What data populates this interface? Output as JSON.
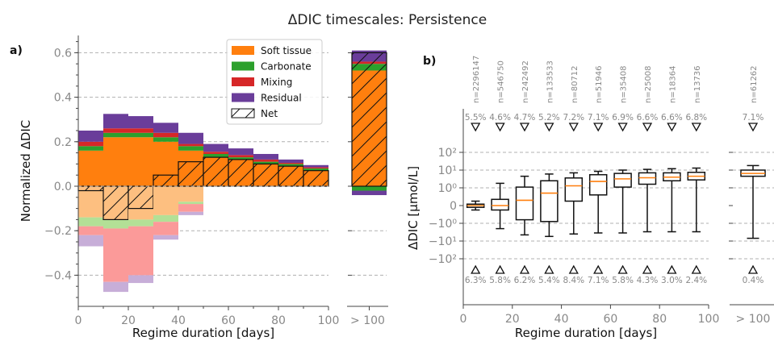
{
  "figure": {
    "title": "ΔDIC timescales: Persistence"
  },
  "colors": {
    "soft_tissue": "#ff7f0e",
    "carbonate": "#2ca02c",
    "mixing": "#d62728",
    "residual": "#6a3d9a",
    "soft_tissue_light": "#fdbf80",
    "carbonate_light": "#b3e096",
    "mixing_light": "#fb9a99",
    "residual_light": "#c7aed8",
    "grid": "#b0b0b0",
    "axis": "#444444",
    "tick_label": "#888888",
    "median": "#ff7f0e"
  },
  "chart_data": [
    {
      "id": "a",
      "panel_label": "a)",
      "type": "bar",
      "stacked": true,
      "ylabel": "Normalized ΔDIC",
      "xlabel": "Regime duration [days]",
      "xlim": [
        0,
        100
      ],
      "ylim": [
        -0.52,
        0.68
      ],
      "yticks": [
        -0.4,
        -0.2,
        0.0,
        0.2,
        0.4,
        0.6
      ],
      "ytick_labels": [
        "−0.4",
        "−0.2",
        "0.0",
        "0.2",
        "0.4",
        "0.6"
      ],
      "xticks": [
        0,
        20,
        40,
        60,
        80,
        100
      ],
      "xtick_labels": [
        "0",
        "20",
        "40",
        "60",
        "80",
        "100"
      ],
      "extra_category_label": "> 100",
      "legend_position": "top-right",
      "legend": [
        "Soft tissue",
        "Carbonate",
        "Mixing",
        "Residual",
        "Net"
      ],
      "bins": [
        [
          0,
          10
        ],
        [
          10,
          20
        ],
        [
          20,
          30
        ],
        [
          30,
          40
        ],
        [
          40,
          50
        ],
        [
          50,
          60
        ],
        [
          60,
          70
        ],
        [
          70,
          80
        ],
        [
          80,
          90
        ],
        [
          90,
          100
        ]
      ],
      "positive": {
        "soft_tissue": [
          0.16,
          0.22,
          0.22,
          0.2,
          0.16,
          0.13,
          0.12,
          0.1,
          0.09,
          0.07
        ],
        "carbonate": [
          0.02,
          0.02,
          0.02,
          0.02,
          0.02,
          0.015,
          0.01,
          0.01,
          0.01,
          0.01
        ],
        "mixing": [
          0.02,
          0.02,
          0.02,
          0.02,
          0.01,
          0.01,
          0.01,
          0.01,
          0.005,
          0.005
        ],
        "residual": [
          0.05,
          0.065,
          0.055,
          0.045,
          0.05,
          0.035,
          0.03,
          0.025,
          0.015,
          0.01
        ]
      },
      "negative": {
        "soft_tissue": [
          -0.14,
          -0.15,
          -0.15,
          -0.13,
          -0.07,
          0,
          0,
          0,
          0,
          0
        ],
        "carbonate": [
          -0.04,
          -0.04,
          -0.03,
          -0.03,
          -0.01,
          0,
          0,
          0,
          0,
          0
        ],
        "mixing": [
          -0.04,
          -0.24,
          -0.22,
          -0.06,
          -0.035,
          0,
          0,
          0,
          0,
          0
        ],
        "residual": [
          -0.05,
          -0.045,
          -0.035,
          -0.02,
          -0.015,
          0,
          0,
          0,
          0,
          0
        ]
      },
      "net": [
        -0.02,
        -0.15,
        -0.1,
        0.05,
        0.11,
        0.13,
        0.12,
        0.1,
        0.09,
        0.07
      ],
      "over_100": {
        "soft_tissue": 0.52,
        "carbonate": 0.03,
        "mixing": 0.01,
        "residual": 0.05,
        "negative_carbonate": -0.02,
        "negative_residual": -0.02,
        "net": 0.6
      }
    },
    {
      "id": "b",
      "panel_label": "b)",
      "type": "box",
      "ylabel": "ΔDIC [µmol/L]",
      "xlabel": "Regime duration [days]",
      "yscale": "symlog",
      "xlim": [
        0,
        100
      ],
      "ytick_labels": [
        "−10²",
        "−10¹",
        "−10⁰",
        "0",
        "10⁰",
        "10¹",
        "10²"
      ],
      "ytick_values": [
        -100,
        -10,
        -1,
        0,
        1,
        10,
        100
      ],
      "xticks": [
        0,
        20,
        40,
        60,
        80,
        100
      ],
      "xtick_labels": [
        "0",
        "20",
        "40",
        "60",
        "80",
        "100"
      ],
      "extra_category_label": "> 100",
      "positions": [
        5,
        15,
        25,
        35,
        45,
        55,
        65,
        75,
        85,
        95
      ],
      "counts": [
        "n=2296147",
        "n=546750",
        "n=242492",
        "n=133533",
        "n=80712",
        "n=51946",
        "n=35408",
        "n=25008",
        "n=18364",
        "n=13736"
      ],
      "boxes": [
        {
          "wlo": -0.25,
          "q1": -0.1,
          "med": 0.0,
          "q3": 0.08,
          "whi": 0.25
        },
        {
          "wlo": -2.0,
          "q1": -0.25,
          "med": 0.0,
          "q3": 0.35,
          "whi": 1.8
        },
        {
          "wlo": -4.5,
          "q1": -0.8,
          "med": 0.3,
          "q3": 1.1,
          "whi": 4.5
        },
        {
          "wlo": -5.5,
          "q1": -0.9,
          "med": 0.7,
          "q3": 2.5,
          "whi": 6.0
        },
        {
          "wlo": -4.0,
          "q1": 0.25,
          "med": 1.3,
          "q3": 3.6,
          "whi": 7.0
        },
        {
          "wlo": -3.5,
          "q1": 0.6,
          "med": 2.3,
          "q3": 5.5,
          "whi": 8.5
        },
        {
          "wlo": -3.5,
          "q1": 1.1,
          "med": 3.2,
          "q3": 6.5,
          "whi": 10.0
        },
        {
          "wlo": -3.0,
          "q1": 1.6,
          "med": 3.7,
          "q3": 7.0,
          "whi": 11.0
        },
        {
          "wlo": -3.0,
          "q1": 2.5,
          "med": 4.0,
          "q3": 7.0,
          "whi": 12.0
        },
        {
          "wlo": -3.0,
          "q1": 2.8,
          "med": 4.5,
          "q3": 7.5,
          "whi": 13.0
        }
      ],
      "upper_outlier_pct": [
        "5.5%",
        "4.6%",
        "4.7%",
        "5.2%",
        "7.2%",
        "7.1%",
        "6.9%",
        "6.6%",
        "6.6%",
        "6.8%"
      ],
      "lower_outlier_pct": [
        "6.3%",
        "5.8%",
        "6.2%",
        "5.4%",
        "8.4%",
        "7.1%",
        "5.8%",
        "4.3%",
        "3.0%",
        "2.4%"
      ],
      "over_100": {
        "count": "n=61262",
        "box": {
          "wlo": -7.0,
          "q1": 4.5,
          "med": 6.5,
          "q3": 10.0,
          "whi": 18.0
        },
        "upper_outlier_pct": "7.1%",
        "lower_outlier_pct": "0.4%"
      }
    }
  ]
}
